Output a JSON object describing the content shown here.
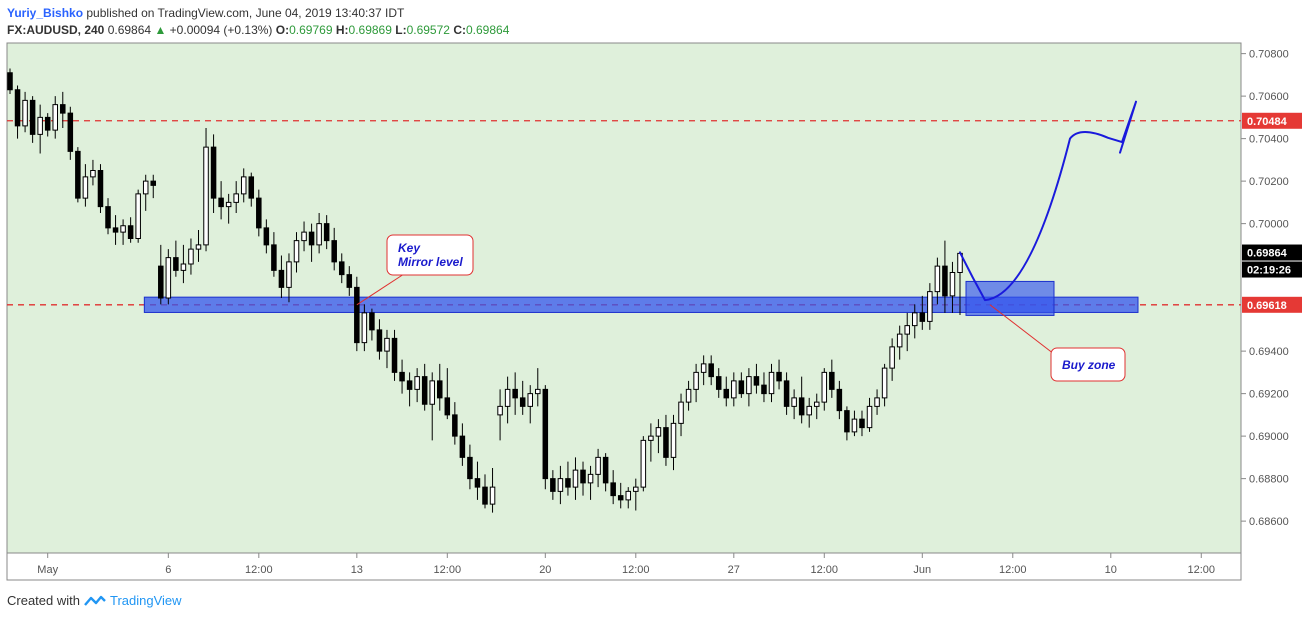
{
  "header": {
    "author": "Yuriy_Bishko",
    "published_text": "published on TradingView.com, June 04, 2019 13:40:37 IDT",
    "symbol": "FX:AUDUSD, 240",
    "last": "0.69864",
    "change": "+0.00094 (+0.13%)",
    "o_label": "O:",
    "o_value": "0.69769",
    "h_label": "H:",
    "h_value": "0.69869",
    "l_label": "L:",
    "l_value": "0.69572",
    "c_label": "C:",
    "c_value": "0.69864"
  },
  "footer": {
    "created_with": "Created with",
    "brand": "TradingView"
  },
  "colors": {
    "background": "#dff0db",
    "candle": "#000000",
    "hline": "#e03030",
    "zone": "#3355ee",
    "drawing": "#1a1adc",
    "callout_text": "#1a1acc"
  },
  "chart_data": {
    "type": "candlestick",
    "ylim": [
      0.6845,
      0.7085
    ],
    "y_ticks": [
      "0.70800",
      "0.70600",
      "0.70400",
      "0.70200",
      "0.70000",
      "0.69400",
      "0.69200",
      "0.69000",
      "0.68800",
      "0.68600"
    ],
    "y_tick_values": [
      0.708,
      0.706,
      0.704,
      0.702,
      0.7,
      0.694,
      0.692,
      0.69,
      0.688,
      0.686
    ],
    "x_ticks": [
      "May",
      "6",
      "12:00",
      "13",
      "12:00",
      "20",
      "12:00",
      "27",
      "12:00",
      "Jun",
      "12:00",
      "10",
      "12:00"
    ],
    "x_tick_bars": [
      5,
      21,
      33,
      46,
      58,
      71,
      83,
      96,
      108,
      121,
      133,
      146,
      158
    ],
    "price_labels": {
      "last": "0.69864",
      "countdown": "02:19:26",
      "resistance": "0.70484",
      "support": "0.69618"
    },
    "levels": [
      0.70484,
      0.69618
    ],
    "candles": [
      [
        0.7071,
        0.7073,
        0.7061,
        0.7063
      ],
      [
        0.7063,
        0.7065,
        0.704,
        0.7046
      ],
      [
        0.7046,
        0.7062,
        0.7043,
        0.7058
      ],
      [
        0.7058,
        0.706,
        0.7038,
        0.7042
      ],
      [
        0.7042,
        0.7056,
        0.7033,
        0.705
      ],
      [
        0.705,
        0.7052,
        0.7041,
        0.7044
      ],
      [
        0.7044,
        0.706,
        0.704,
        0.7056
      ],
      [
        0.7056,
        0.7062,
        0.7045,
        0.7052
      ],
      [
        0.7052,
        0.7055,
        0.703,
        0.7034
      ],
      [
        0.7034,
        0.7036,
        0.701,
        0.7012
      ],
      [
        0.7012,
        0.7028,
        0.7008,
        0.7022
      ],
      [
        0.7022,
        0.703,
        0.7018,
        0.7025
      ],
      [
        0.7025,
        0.7028,
        0.7005,
        0.7008
      ],
      [
        0.7008,
        0.7012,
        0.6995,
        0.6998
      ],
      [
        0.6998,
        0.7004,
        0.699,
        0.6996
      ],
      [
        0.6996,
        0.7002,
        0.699,
        0.6999
      ],
      [
        0.6999,
        0.7003,
        0.6991,
        0.6993
      ],
      [
        0.6993,
        0.7016,
        0.6991,
        0.7014
      ],
      [
        0.7014,
        0.7023,
        0.7006,
        0.702
      ],
      [
        0.702,
        0.7023,
        0.7012,
        0.7018
      ],
      [
        0.698,
        0.699,
        0.6962,
        0.6965
      ],
      [
        0.6965,
        0.6988,
        0.6962,
        0.6984
      ],
      [
        0.6984,
        0.6992,
        0.6975,
        0.6978
      ],
      [
        0.6978,
        0.699,
        0.6972,
        0.6981
      ],
      [
        0.6981,
        0.6993,
        0.6976,
        0.6988
      ],
      [
        0.6988,
        0.6997,
        0.6982,
        0.699
      ],
      [
        0.699,
        0.7045,
        0.6987,
        0.7036
      ],
      [
        0.7036,
        0.7042,
        0.7005,
        0.7012
      ],
      [
        0.7012,
        0.702,
        0.7002,
        0.7008
      ],
      [
        0.7008,
        0.7014,
        0.7,
        0.701
      ],
      [
        0.701,
        0.702,
        0.7005,
        0.7014
      ],
      [
        0.7014,
        0.7026,
        0.701,
        0.7022
      ],
      [
        0.7022,
        0.7024,
        0.7008,
        0.7012
      ],
      [
        0.7012,
        0.7016,
        0.6994,
        0.6998
      ],
      [
        0.6998,
        0.7002,
        0.6986,
        0.699
      ],
      [
        0.699,
        0.6996,
        0.6975,
        0.6978
      ],
      [
        0.6978,
        0.6985,
        0.6965,
        0.697
      ],
      [
        0.697,
        0.6986,
        0.6963,
        0.6982
      ],
      [
        0.6982,
        0.6996,
        0.6977,
        0.6992
      ],
      [
        0.6992,
        0.7001,
        0.6987,
        0.6996
      ],
      [
        0.6996,
        0.7,
        0.6982,
        0.699
      ],
      [
        0.699,
        0.7005,
        0.6986,
        0.7
      ],
      [
        0.7,
        0.7004,
        0.6988,
        0.6992
      ],
      [
        0.6992,
        0.6998,
        0.6978,
        0.6982
      ],
      [
        0.6982,
        0.6986,
        0.6972,
        0.6976
      ],
      [
        0.6976,
        0.698,
        0.6966,
        0.697
      ],
      [
        0.697,
        0.6975,
        0.694,
        0.6944
      ],
      [
        0.6944,
        0.6962,
        0.694,
        0.6958
      ],
      [
        0.6958,
        0.696,
        0.6945,
        0.695
      ],
      [
        0.695,
        0.6955,
        0.6936,
        0.694
      ],
      [
        0.694,
        0.695,
        0.6932,
        0.6946
      ],
      [
        0.6946,
        0.695,
        0.6926,
        0.693
      ],
      [
        0.693,
        0.6936,
        0.692,
        0.6926
      ],
      [
        0.6926,
        0.693,
        0.6914,
        0.6922
      ],
      [
        0.6922,
        0.6932,
        0.6916,
        0.6928
      ],
      [
        0.6928,
        0.6934,
        0.6912,
        0.6915
      ],
      [
        0.6915,
        0.693,
        0.6898,
        0.6926
      ],
      [
        0.6926,
        0.6934,
        0.6912,
        0.6918
      ],
      [
        0.6918,
        0.6932,
        0.6908,
        0.691
      ],
      [
        0.691,
        0.6916,
        0.6896,
        0.69
      ],
      [
        0.69,
        0.6906,
        0.6886,
        0.689
      ],
      [
        0.689,
        0.6896,
        0.6875,
        0.688
      ],
      [
        0.688,
        0.6888,
        0.687,
        0.6876
      ],
      [
        0.6876,
        0.6882,
        0.6866,
        0.6868
      ],
      [
        0.6868,
        0.6885,
        0.6864,
        0.6876
      ],
      [
        0.691,
        0.6922,
        0.6898,
        0.6914
      ],
      [
        0.6914,
        0.6928,
        0.6906,
        0.6922
      ],
      [
        0.6922,
        0.693,
        0.691,
        0.6918
      ],
      [
        0.6918,
        0.6926,
        0.691,
        0.6914
      ],
      [
        0.6914,
        0.6924,
        0.6906,
        0.692
      ],
      [
        0.692,
        0.6932,
        0.6914,
        0.6922
      ],
      [
        0.6922,
        0.6924,
        0.6875,
        0.688
      ],
      [
        0.688,
        0.6884,
        0.687,
        0.6874
      ],
      [
        0.6874,
        0.6886,
        0.6868,
        0.688
      ],
      [
        0.688,
        0.6888,
        0.6872,
        0.6876
      ],
      [
        0.6876,
        0.689,
        0.687,
        0.6884
      ],
      [
        0.6884,
        0.6888,
        0.6872,
        0.6878
      ],
      [
        0.6878,
        0.6886,
        0.687,
        0.6882
      ],
      [
        0.6882,
        0.6894,
        0.6876,
        0.689
      ],
      [
        0.689,
        0.6892,
        0.6874,
        0.6878
      ],
      [
        0.6878,
        0.6884,
        0.6868,
        0.6872
      ],
      [
        0.6872,
        0.6878,
        0.6866,
        0.687
      ],
      [
        0.687,
        0.6876,
        0.6866,
        0.6874
      ],
      [
        0.6874,
        0.688,
        0.6865,
        0.6876
      ],
      [
        0.6876,
        0.69,
        0.6874,
        0.6898
      ],
      [
        0.6898,
        0.6906,
        0.6888,
        0.69
      ],
      [
        0.69,
        0.6908,
        0.6892,
        0.6904
      ],
      [
        0.6904,
        0.691,
        0.6886,
        0.689
      ],
      [
        0.689,
        0.691,
        0.6884,
        0.6906
      ],
      [
        0.6906,
        0.692,
        0.69,
        0.6916
      ],
      [
        0.6916,
        0.6926,
        0.6912,
        0.6922
      ],
      [
        0.6922,
        0.6934,
        0.6916,
        0.693
      ],
      [
        0.693,
        0.6938,
        0.6924,
        0.6934
      ],
      [
        0.6934,
        0.6938,
        0.6924,
        0.6928
      ],
      [
        0.6928,
        0.6932,
        0.6918,
        0.6922
      ],
      [
        0.6922,
        0.6928,
        0.6914,
        0.6918
      ],
      [
        0.6918,
        0.693,
        0.6914,
        0.6926
      ],
      [
        0.6926,
        0.693,
        0.6918,
        0.692
      ],
      [
        0.692,
        0.6932,
        0.6914,
        0.6928
      ],
      [
        0.6928,
        0.6934,
        0.692,
        0.6924
      ],
      [
        0.6924,
        0.693,
        0.6916,
        0.692
      ],
      [
        0.692,
        0.6934,
        0.6916,
        0.693
      ],
      [
        0.693,
        0.6936,
        0.6922,
        0.6926
      ],
      [
        0.6926,
        0.693,
        0.691,
        0.6914
      ],
      [
        0.6914,
        0.6922,
        0.6908,
        0.6918
      ],
      [
        0.6918,
        0.6928,
        0.6906,
        0.691
      ],
      [
        0.691,
        0.6918,
        0.6904,
        0.6914
      ],
      [
        0.6914,
        0.692,
        0.6908,
        0.6916
      ],
      [
        0.6916,
        0.6932,
        0.6912,
        0.693
      ],
      [
        0.693,
        0.6936,
        0.6918,
        0.6922
      ],
      [
        0.6922,
        0.6926,
        0.6908,
        0.6912
      ],
      [
        0.6912,
        0.6914,
        0.6898,
        0.6902
      ],
      [
        0.6902,
        0.6912,
        0.69,
        0.6908
      ],
      [
        0.6908,
        0.6912,
        0.69,
        0.6904
      ],
      [
        0.6904,
        0.6918,
        0.6902,
        0.6914
      ],
      [
        0.6914,
        0.6922,
        0.691,
        0.6918
      ],
      [
        0.6918,
        0.6934,
        0.6914,
        0.6932
      ],
      [
        0.6932,
        0.6946,
        0.6926,
        0.6942
      ],
      [
        0.6942,
        0.6952,
        0.6936,
        0.6948
      ],
      [
        0.6948,
        0.6958,
        0.694,
        0.6952
      ],
      [
        0.6952,
        0.6962,
        0.6946,
        0.6958
      ],
      [
        0.6958,
        0.6966,
        0.695,
        0.6954
      ],
      [
        0.6954,
        0.6972,
        0.695,
        0.6968
      ],
      [
        0.6968,
        0.6984,
        0.6962,
        0.698
      ],
      [
        0.698,
        0.6992,
        0.6958,
        0.6966
      ],
      [
        0.6966,
        0.6982,
        0.6958,
        0.6977
      ],
      [
        0.6977,
        0.6987,
        0.6957,
        0.6986
      ]
    ],
    "annotations": [
      {
        "text_lines": [
          "Key",
          "Mirror level"
        ]
      },
      {
        "text": "Buy zone"
      }
    ]
  }
}
